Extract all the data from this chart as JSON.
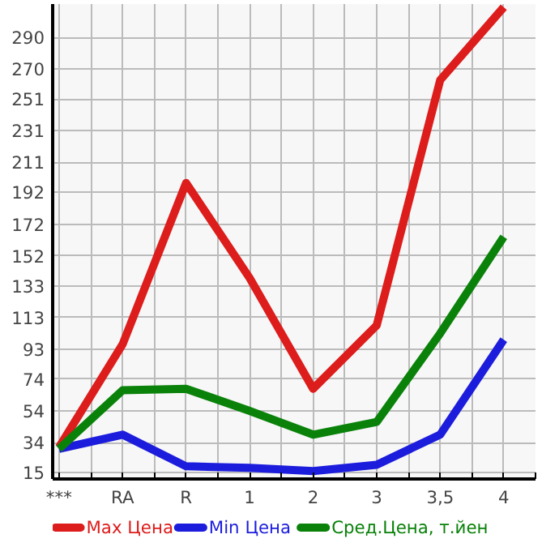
{
  "chart_data": {
    "type": "line",
    "categories": [
      "***",
      "RA",
      "R",
      "1",
      "2",
      "3",
      "3,5",
      "4"
    ],
    "series": [
      {
        "name": "Max Цена",
        "color": "#dd1c1c",
        "values": [
          31,
          96,
          198,
          138,
          68,
          108,
          263,
          309
        ]
      },
      {
        "name": "Min Цена",
        "color": "#1c1cdd",
        "values": [
          30,
          39,
          19,
          18,
          16,
          20,
          39,
          99
        ]
      },
      {
        "name": "Сред.Цена, т.йен",
        "color": "#0a820a",
        "values": [
          30,
          67,
          68,
          54,
          39,
          47,
          103,
          164
        ]
      }
    ],
    "ylim": [
      11,
      311
    ],
    "yticks": [
      15,
      34,
      54,
      74,
      93,
      113,
      133,
      152,
      172,
      192,
      211,
      231,
      251,
      270,
      290
    ],
    "grid": true,
    "legend": "bottom",
    "marker": "none",
    "line_style": "solid"
  }
}
